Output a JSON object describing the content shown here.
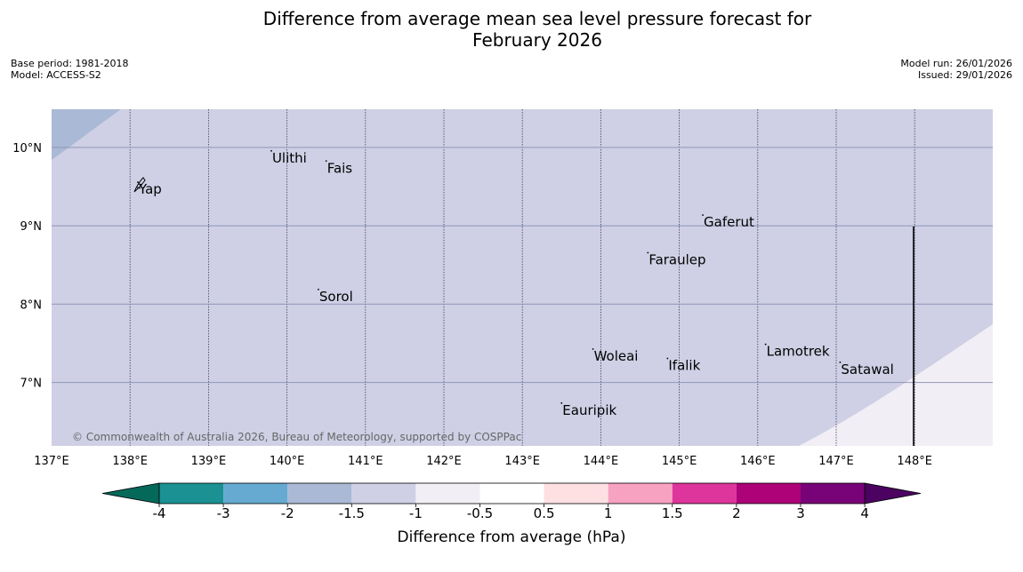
{
  "title": {
    "line1": "Difference from average mean sea level pressure forecast for",
    "line2": "February 2026"
  },
  "meta": {
    "base_period": "Base period: 1981-2018",
    "model": "Model: ACCESS-S2",
    "model_run": "Model run: 26/01/2026",
    "issued": "Issued: 29/01/2026"
  },
  "map": {
    "lon_labels": [
      "137°E",
      "138°E",
      "139°E",
      "140°E",
      "141°E",
      "142°E",
      "143°E",
      "144°E",
      "145°E",
      "146°E",
      "147°E",
      "148°E"
    ],
    "lat_labels": [
      "10°N",
      "9°N",
      "8°N",
      "7°N"
    ],
    "places": [
      {
        "name": "Ulithi",
        "lon": 139.8,
        "lat": 9.9
      },
      {
        "name": "Fais",
        "lon": 140.5,
        "lat": 9.77
      },
      {
        "name": "Yap",
        "lon": 138.1,
        "lat": 9.5
      },
      {
        "name": "Gaferut",
        "lon": 145.3,
        "lat": 9.08
      },
      {
        "name": "Faraulep",
        "lon": 144.6,
        "lat": 8.6
      },
      {
        "name": "Sorol",
        "lon": 140.4,
        "lat": 8.13
      },
      {
        "name": "Lamotrek",
        "lon": 146.1,
        "lat": 7.43
      },
      {
        "name": "Woleai",
        "lon": 143.9,
        "lat": 7.37
      },
      {
        "name": "Ifalik",
        "lon": 144.85,
        "lat": 7.25
      },
      {
        "name": "Satawal",
        "lon": 147.05,
        "lat": 7.2
      },
      {
        "name": "Eauripik",
        "lon": 143.5,
        "lat": 6.68
      }
    ],
    "copyright": "© Commonwealth of Australia 2026, Bureau of Meteorology, supported by COSPPac"
  },
  "colorbar": {
    "title": "Difference from average (hPa)",
    "tick_labels": [
      "-4",
      "-3",
      "-2",
      "-1.5",
      "-1",
      "-0.5",
      "0.5",
      "1",
      "1.5",
      "2",
      "3",
      "4"
    ],
    "colors": {
      "below_min": "#05695a",
      "bins": [
        "#1b9193",
        "#66a9d1",
        "#aab9d5",
        "#cfd0e5",
        "#f2eef5",
        "#ffffff",
        "#fee0e2",
        "#f8a2c1",
        "#dd359b",
        "#ad0278",
        "#780277"
      ],
      "above_max": "#4b0260"
    }
  },
  "chart_data": {
    "type": "heatmap",
    "title": "Difference from average mean sea level pressure forecast for February 2026",
    "variable": "Difference from average (hPa)",
    "x_range_deg_e": [
      137.0,
      149.0
    ],
    "y_range_deg_n": [
      6.2,
      10.5
    ],
    "dominant_category_hpa": "-1.5 to -1",
    "northwest_corner_category_hpa": "-2 to -1.5",
    "southeast_corner_category_hpa": "-1 to -0.5"
  }
}
